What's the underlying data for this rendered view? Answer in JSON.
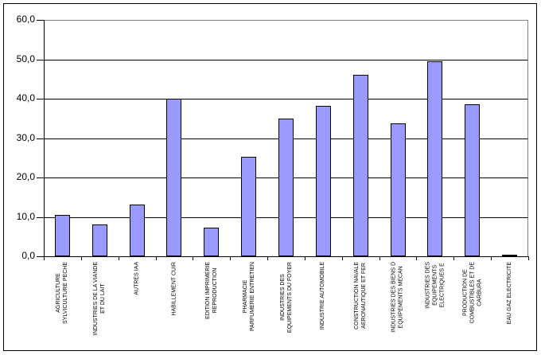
{
  "chart_data": {
    "type": "bar",
    "title": "",
    "xlabel": "",
    "ylabel": "",
    "ylim": [
      0,
      60
    ],
    "ytick_step": 10,
    "ytick_labels": [
      "0,0",
      "10,0",
      "20,0",
      "30,0",
      "40,0",
      "50,0",
      "60,0"
    ],
    "grid": true,
    "legend_position": "none",
    "categories": [
      "AGRICULTURE SYLVICULTURE PECHE",
      "INDUSTRIES DE LA VIANDE ET DU LAIT",
      "AUTRES IAA",
      "HABILLEMENT CUIR",
      "EDITION IMPRIMERIE REPRODUCTION",
      "PHARMACIE PARFUMERIE ENTRETIEN",
      "INDUSTRIES DES EQUIPEMENTS DU FOYER",
      "INDUSTRIE AUTOMOBILE",
      "CONSTRUCTION NAVALE AERONAUTIQUE ET FER",
      "INDUSTRIES DES BIENS D EQUIPEMENTS MECAN",
      "INDUSTRIES DES EQUIPEMENTS ELECTRIQUES E",
      "PRODUCTION DE COMBUSTIBLES ET DE CARBURA",
      "EAU GAZ ELECTRICITE"
    ],
    "category_label_lines": [
      [
        "AGRICULTURE",
        "SYLVICULTURE PECHE"
      ],
      [
        "INDUSTRIES DE LA VIANDE",
        "ET DU LAIT"
      ],
      [
        "AUTRES IAA"
      ],
      [
        "HABILLEMENT CUIR"
      ],
      [
        "EDITION IMPRIMERIE",
        "REPRODUCTION"
      ],
      [
        "PHARMACIE",
        "PARFUMERIE ENTRETIEN"
      ],
      [
        "INDUSTRIES DES",
        "EQUIPEMENTS DU FOYER"
      ],
      [
        "INDUSTRIE AUTOMOBILE"
      ],
      [
        "CONSTRUCTION NAVALE",
        "AERONAUTIQUE ET FER"
      ],
      [
        "INDUSTRIES DES BIENS D",
        "EQUIPEMENTS MECAN"
      ],
      [
        "INDUSTRIES DES",
        "EQUIPEMENTS",
        "ELECTRIQUES E"
      ],
      [
        "PRODUCTION DE",
        "COMBUSTIBLES ET DE",
        "CARBURA"
      ],
      [
        "EAU GAZ ELECTRICITE"
      ]
    ],
    "values": [
      10.6,
      8.0,
      13.2,
      39.9,
      7.2,
      25.3,
      34.9,
      38.2,
      46.0,
      33.7,
      49.5,
      38.6,
      0.4
    ],
    "colors": {
      "bar_fill": "#9999FF",
      "bar_border": "#000000",
      "gridline": "#000000",
      "plot_border": "#808080",
      "axis": "#000000",
      "frame": "#000000",
      "background": "#FFFFFF",
      "text": "#000000"
    }
  }
}
